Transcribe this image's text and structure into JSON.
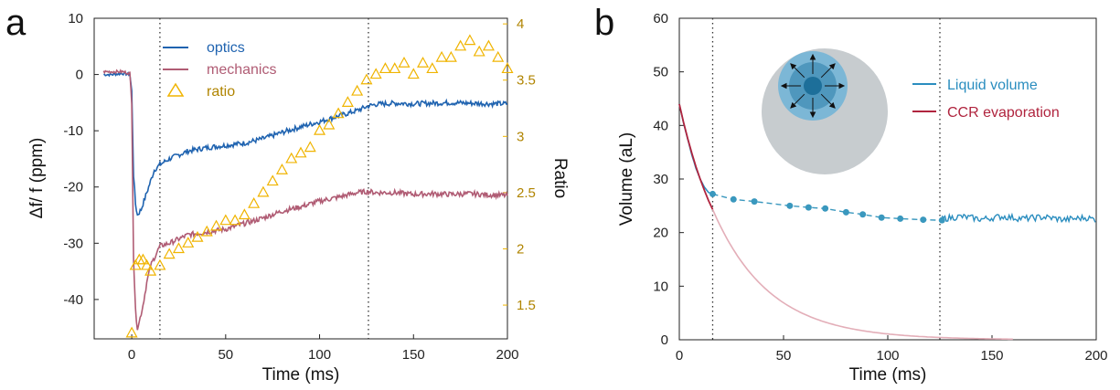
{
  "figure": {
    "panel_a_letter": "a",
    "panel_b_letter": "b"
  },
  "colors": {
    "optics": "#1f63b0",
    "mechanics": "#b05c74",
    "ratio": "#f0b400",
    "liquid": "#2a8dbf",
    "ccr": "#b0243e",
    "ccr_faint": "#e3aeb8",
    "dots": "#3a98be",
    "sphere_outer": "#c7cccf",
    "sphere_inner": "#4f97bd"
  },
  "chart_data": [
    {
      "type": "line",
      "panel": "a",
      "xlabel": "Time (ms)",
      "ylabel": "Δf/ f (ppm)",
      "y2label": "Ratio",
      "xlim": [
        -20,
        200
      ],
      "ylim": [
        -47,
        10
      ],
      "y2lim": [
        1.2,
        4.05
      ],
      "xticks": [
        0,
        50,
        100,
        150,
        200
      ],
      "yticks": [
        10,
        0,
        -10,
        -20,
        -30,
        -40
      ],
      "y2ticks": [
        1.5,
        2,
        2.5,
        3,
        3.5,
        4
      ],
      "vlines": [
        15,
        126
      ],
      "legend": [
        "optics",
        "mechanics",
        "ratio"
      ],
      "legend_position": "top-left",
      "series": [
        {
          "name": "optics",
          "style": "line",
          "x": [
            -15,
            -10,
            -5,
            -1,
            0,
            1,
            2,
            3,
            5,
            8,
            10,
            12,
            15,
            20,
            30,
            40,
            50,
            60,
            70,
            80,
            90,
            100,
            110,
            120,
            126,
            130,
            140,
            150,
            160,
            170,
            180,
            190,
            200
          ],
          "values": [
            0,
            0,
            0.2,
            0,
            -3,
            -18,
            -23,
            -25,
            -24,
            -21,
            -19,
            -17,
            -16,
            -15,
            -13.6,
            -13,
            -12.6,
            -12.2,
            -11.4,
            -10.3,
            -9.3,
            -8.4,
            -7.4,
            -6.4,
            -5.6,
            -5.3,
            -5.1,
            -5.2,
            -5.1,
            -5.0,
            -5.1,
            -5.2,
            -5.2
          ]
        },
        {
          "name": "mechanics",
          "style": "line",
          "x": [
            -15,
            -5,
            -1,
            0,
            1,
            2,
            3,
            4,
            6,
            8,
            10,
            15,
            20,
            30,
            40,
            50,
            60,
            70,
            80,
            90,
            100,
            110,
            120,
            126,
            130,
            140,
            150,
            160,
            170,
            180,
            190,
            200
          ],
          "values": [
            0.5,
            0.5,
            0.2,
            -5,
            -33,
            -42,
            -45,
            -44,
            -41,
            -37,
            -34,
            -30.5,
            -30,
            -28.5,
            -28,
            -27.5,
            -26.5,
            -25.5,
            -24.3,
            -23.5,
            -22.5,
            -21.8,
            -21,
            -20.8,
            -21,
            -21,
            -21.3,
            -21.2,
            -21.3,
            -21.2,
            -21.4,
            -21.5
          ]
        },
        {
          "name": "ratio",
          "style": "triangle-markers",
          "axis": "right",
          "x": [
            0,
            2,
            4,
            6,
            8,
            10,
            15,
            20,
            25,
            30,
            35,
            40,
            45,
            50,
            55,
            60,
            65,
            70,
            75,
            80,
            85,
            90,
            95,
            100,
            105,
            110,
            115,
            120,
            125,
            130,
            135,
            140,
            145,
            150,
            155,
            160,
            165,
            170,
            175,
            180,
            185,
            190,
            195,
            200
          ],
          "values": [
            1.25,
            1.85,
            1.9,
            1.9,
            1.85,
            1.8,
            1.85,
            1.95,
            2.0,
            2.05,
            2.1,
            2.15,
            2.2,
            2.25,
            2.25,
            2.3,
            2.4,
            2.5,
            2.6,
            2.7,
            2.8,
            2.85,
            2.9,
            3.05,
            3.1,
            3.2,
            3.3,
            3.4,
            3.5,
            3.55,
            3.6,
            3.6,
            3.65,
            3.55,
            3.65,
            3.6,
            3.7,
            3.7,
            3.8,
            3.85,
            3.75,
            3.8,
            3.7,
            3.6
          ]
        }
      ]
    },
    {
      "type": "line",
      "panel": "b",
      "xlabel": "Time (ms)",
      "ylabel": "Volume (aL)",
      "xlim": [
        0,
        200
      ],
      "ylim": [
        0,
        60
      ],
      "xticks": [
        0,
        50,
        100,
        150,
        200
      ],
      "yticks": [
        0,
        10,
        20,
        30,
        40,
        50,
        60
      ],
      "vlines": [
        16,
        125
      ],
      "legend": [
        "Liquid volume",
        "CCR evaporation"
      ],
      "legend_position": "right",
      "series": [
        {
          "name": "Liquid volume",
          "style": "line",
          "x": [
            0,
            2,
            4,
            6,
            8,
            10,
            12,
            14,
            16,
            126,
            135,
            145,
            155,
            165,
            175,
            185,
            195,
            200
          ],
          "values": [
            44,
            40.5,
            37.5,
            34.5,
            32,
            30,
            28.5,
            27.5,
            27.2,
            22.6,
            23,
            22.5,
            23,
            22.6,
            22.9,
            22.4,
            22.8,
            22.4
          ]
        },
        {
          "name": "Liquid volume fit",
          "style": "dashed-dots",
          "x": [
            16,
            26,
            36,
            53,
            62,
            70,
            80,
            88,
            97,
            106,
            117,
            126
          ],
          "values": [
            27.2,
            26.2,
            25.8,
            25.0,
            24.7,
            24.5,
            23.8,
            23.4,
            22.8,
            22.6,
            22.4,
            22.3
          ]
        },
        {
          "name": "CCR evaporation",
          "style": "line",
          "x": [
            0,
            2,
            4,
            6,
            8,
            10,
            12,
            14,
            16
          ],
          "values": [
            44,
            40.6,
            37.6,
            34.8,
            32.3,
            30,
            27.9,
            26,
            24.3
          ]
        },
        {
          "name": "CCR evaporation extrapolated",
          "style": "faint-line",
          "formula": "44*exp(-t/27)",
          "x": [
            16,
            25,
            35,
            50,
            65,
            80,
            100,
            120,
            140,
            160
          ],
          "values": [
            24.3,
            17.4,
            12.1,
            6.9,
            3.9,
            2.3,
            1.0,
            0.5,
            0.2,
            0.1
          ]
        }
      ]
    }
  ]
}
